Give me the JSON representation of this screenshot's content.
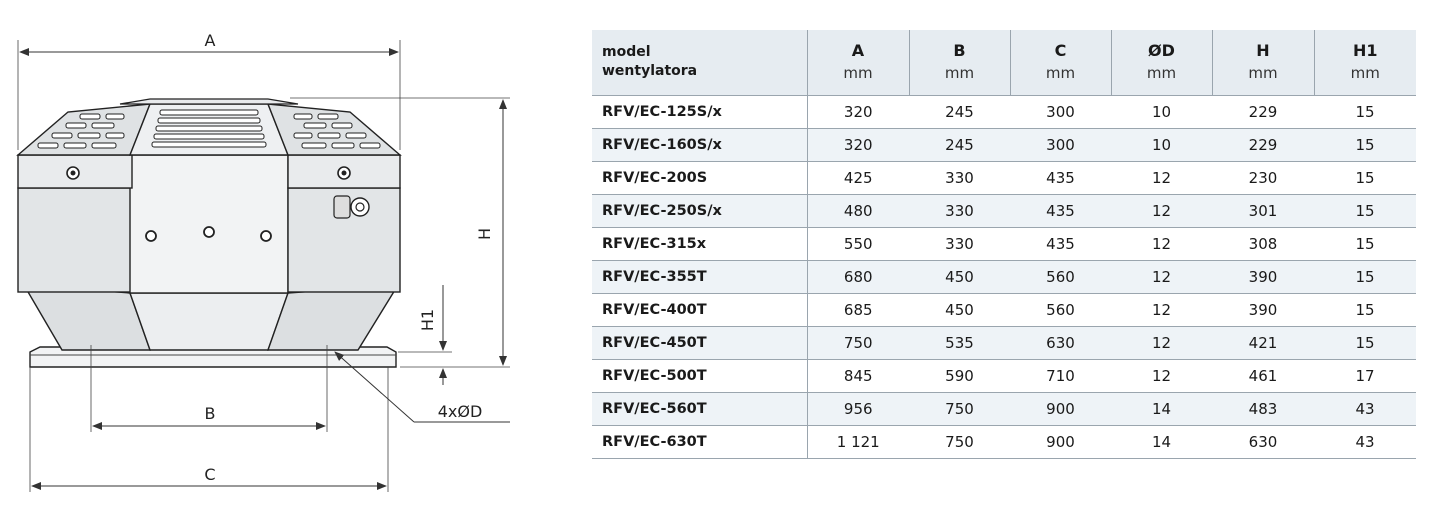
{
  "drawing": {
    "labels": {
      "A": "A",
      "B": "B",
      "C": "C",
      "H": "H",
      "H1": "H1",
      "holes": "4xØD"
    }
  },
  "table": {
    "headers": [
      {
        "label": "model wentylatora",
        "unit": ""
      },
      {
        "label": "A",
        "unit": "mm"
      },
      {
        "label": "B",
        "unit": "mm"
      },
      {
        "label": "C",
        "unit": "mm"
      },
      {
        "label": "ØD",
        "unit": "mm"
      },
      {
        "label": "H",
        "unit": "mm"
      },
      {
        "label": "H1",
        "unit": "mm"
      }
    ],
    "model_header_lines": [
      "model",
      "wentylatora"
    ],
    "rows": [
      {
        "model": "RFV/EC-125S/x",
        "A": "320",
        "B": "245",
        "C": "300",
        "D": "10",
        "H": "229",
        "H1": "15"
      },
      {
        "model": "RFV/EC-160S/x",
        "A": "320",
        "B": "245",
        "C": "300",
        "D": "10",
        "H": "229",
        "H1": "15"
      },
      {
        "model": "RFV/EC-200S",
        "A": "425",
        "B": "330",
        "C": "435",
        "D": "12",
        "H": "230",
        "H1": "15"
      },
      {
        "model": "RFV/EC-250S/x",
        "A": "480",
        "B": "330",
        "C": "435",
        "D": "12",
        "H": "301",
        "H1": "15"
      },
      {
        "model": "RFV/EC-315x",
        "A": "550",
        "B": "330",
        "C": "435",
        "D": "12",
        "H": "308",
        "H1": "15"
      },
      {
        "model": "RFV/EC-355T",
        "A": "680",
        "B": "450",
        "C": "560",
        "D": "12",
        "H": "390",
        "H1": "15"
      },
      {
        "model": "RFV/EC-400T",
        "A": "685",
        "B": "450",
        "C": "560",
        "D": "12",
        "H": "390",
        "H1": "15"
      },
      {
        "model": "RFV/EC-450T",
        "A": "750",
        "B": "535",
        "C": "630",
        "D": "12",
        "H": "421",
        "H1": "15"
      },
      {
        "model": "RFV/EC-500T",
        "A": "845",
        "B": "590",
        "C": "710",
        "D": "12",
        "H": "461",
        "H1": "17"
      },
      {
        "model": "RFV/EC-560T",
        "A": "956",
        "B": "750",
        "C": "900",
        "D": "14",
        "H": "483",
        "H1": "43"
      },
      {
        "model": "RFV/EC-630T",
        "A": "1 121",
        "B": "750",
        "C": "900",
        "D": "14",
        "H": "630",
        "H1": "43"
      }
    ]
  }
}
